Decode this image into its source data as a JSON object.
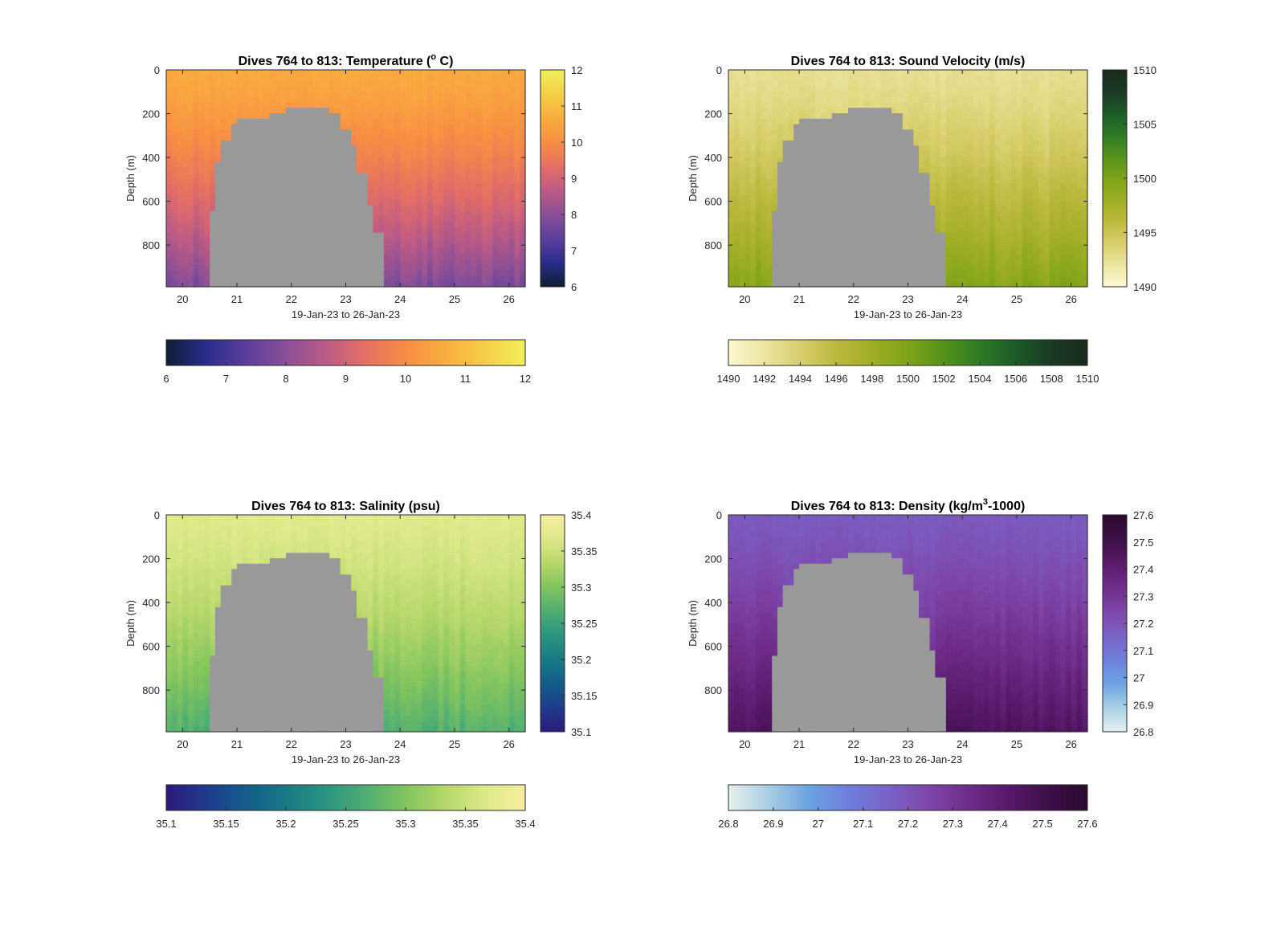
{
  "figure": {
    "background": "#ffffff",
    "gap_color": "#999999"
  },
  "chart_data": [
    {
      "type": "heatmap",
      "variable": "temperature",
      "title": "Dives 764 to 813: Temperature (",
      "title_sup": "o",
      "title_suffix": " C)",
      "xlabel": "19-Jan-23 to 26-Jan-23",
      "ylabel": "Depth (m)",
      "x_ticks": [
        "20",
        "21",
        "22",
        "23",
        "24",
        "25",
        "26"
      ],
      "x_tick_values": [
        20,
        21,
        22,
        23,
        24,
        25,
        26
      ],
      "xlim": [
        19.7,
        26.3
      ],
      "y_ticks": [
        "0",
        "200",
        "400",
        "600",
        "800"
      ],
      "y_tick_values": [
        0,
        200,
        400,
        600,
        800
      ],
      "ylim": [
        0,
        990
      ],
      "y_reversed": true,
      "data_gap": {
        "x_start": 20.5,
        "x_end": 23.7,
        "description": "no data (seafloor shadow)"
      },
      "surface_value": 10.6,
      "bottom_value": 7.8,
      "colormap": [
        "#0e1e33",
        "#2a2c8c",
        "#5b3f9b",
        "#8a4f96",
        "#bd5b85",
        "#e46f64",
        "#f78e44",
        "#f9ad3f",
        "#f6cf48",
        "#eff05a"
      ],
      "clim": [
        6,
        12
      ],
      "colorbar_side_ticks": [
        "12",
        "11",
        "10",
        "9",
        "8",
        "7",
        "6"
      ],
      "colorbar_bottom_ticks": [
        "6",
        "7",
        "8",
        "9",
        "10",
        "11",
        "12"
      ]
    },
    {
      "type": "heatmap",
      "variable": "sound_velocity",
      "title": "Dives 764 to 813: Sound Velocity (m/s)",
      "xlabel": "19-Jan-23 to 26-Jan-23",
      "ylabel": "Depth (m)",
      "x_ticks": [
        "20",
        "21",
        "22",
        "23",
        "24",
        "25",
        "26"
      ],
      "x_tick_values": [
        20,
        21,
        22,
        23,
        24,
        25,
        26
      ],
      "xlim": [
        19.7,
        26.3
      ],
      "y_ticks": [
        "0",
        "200",
        "400",
        "600",
        "800"
      ],
      "y_tick_values": [
        0,
        200,
        400,
        600,
        800
      ],
      "ylim": [
        0,
        990
      ],
      "y_reversed": true,
      "data_gap": {
        "x_start": 20.5,
        "x_end": 23.7,
        "description": "no data (seafloor shadow)"
      },
      "surface_value": 1492.5,
      "bottom_value": 1499.5,
      "colormap": [
        "#fdf8d4",
        "#ece5a0",
        "#d8cf6c",
        "#bdb93f",
        "#9fae25",
        "#7ea319",
        "#55921c",
        "#2e7a26",
        "#1c5a27",
        "#1a3a24",
        "#1a2a1e"
      ],
      "clim": [
        1490,
        1510
      ],
      "colorbar_side_ticks": [
        "1510",
        "1505",
        "1500",
        "1495",
        "1490"
      ],
      "colorbar_bottom_ticks": [
        "1490",
        "1492",
        "1494",
        "1496",
        "1498",
        "1500",
        "1502",
        "1504",
        "1506",
        "1508",
        "1510"
      ]
    },
    {
      "type": "heatmap",
      "variable": "salinity",
      "title": "Dives 764 to 813: Salinity (psu)",
      "xlabel": "19-Jan-23 to 26-Jan-23",
      "ylabel": "Depth (m)",
      "x_ticks": [
        "20",
        "21",
        "22",
        "23",
        "24",
        "25",
        "26"
      ],
      "x_tick_values": [
        20,
        21,
        22,
        23,
        24,
        25,
        26
      ],
      "xlim": [
        19.7,
        26.3
      ],
      "y_ticks": [
        "0",
        "200",
        "400",
        "600",
        "800"
      ],
      "y_tick_values": [
        0,
        200,
        400,
        600,
        800
      ],
      "ylim": [
        0,
        990
      ],
      "y_reversed": true,
      "data_gap": {
        "x_start": 20.5,
        "x_end": 23.7,
        "description": "no data (seafloor shadow)"
      },
      "surface_value": 35.37,
      "bottom_value": 35.27,
      "colormap": [
        "#2a1b7a",
        "#1f3b8c",
        "#135d8a",
        "#197a85",
        "#2a9480",
        "#4fae72",
        "#82c45f",
        "#b6d76a",
        "#dde98a",
        "#f7eea0"
      ],
      "clim": [
        35.1,
        35.4
      ],
      "colorbar_side_ticks": [
        "35.4",
        "35.35",
        "35.3",
        "35.25",
        "35.2",
        "35.15",
        "35.1"
      ],
      "colorbar_bottom_ticks": [
        "35.1",
        "35.15",
        "35.2",
        "35.25",
        "35.3",
        "35.35",
        "35.4"
      ]
    },
    {
      "type": "heatmap",
      "variable": "density",
      "title": "Dives 764 to 813: Density (kg/m",
      "title_sup": "3",
      "title_suffix": "-1000)",
      "xlabel": "19-Jan-23 to 26-Jan-23",
      "ylabel": "Depth (m)",
      "x_ticks": [
        "20",
        "21",
        "22",
        "23",
        "24",
        "25",
        "26"
      ],
      "x_tick_values": [
        20,
        21,
        22,
        23,
        24,
        25,
        26
      ],
      "xlim": [
        19.7,
        26.3
      ],
      "y_ticks": [
        "0",
        "200",
        "400",
        "600",
        "800"
      ],
      "y_tick_values": [
        0,
        200,
        400,
        600,
        800
      ],
      "ylim": [
        0,
        990
      ],
      "y_reversed": true,
      "data_gap": {
        "x_start": 20.5,
        "x_end": 23.7,
        "description": "no data (seafloor shadow)"
      },
      "surface_value": 27.18,
      "bottom_value": 27.45,
      "colormap": [
        "#e6f0f0",
        "#a9cfe4",
        "#6da3e2",
        "#6e7fdc",
        "#7a62c6",
        "#7e47aa",
        "#6f2d8a",
        "#58196a",
        "#3e0f49",
        "#2a0a2e"
      ],
      "clim": [
        26.8,
        27.6
      ],
      "colorbar_side_ticks": [
        "27.6",
        "27.5",
        "27.4",
        "27.3",
        "27.2",
        "27.1",
        "27",
        "26.9",
        "26.8"
      ],
      "colorbar_bottom_ticks": [
        "26.8",
        "26.9",
        "27",
        "27.1",
        "27.2",
        "27.3",
        "27.4",
        "27.5",
        "27.6"
      ]
    }
  ]
}
